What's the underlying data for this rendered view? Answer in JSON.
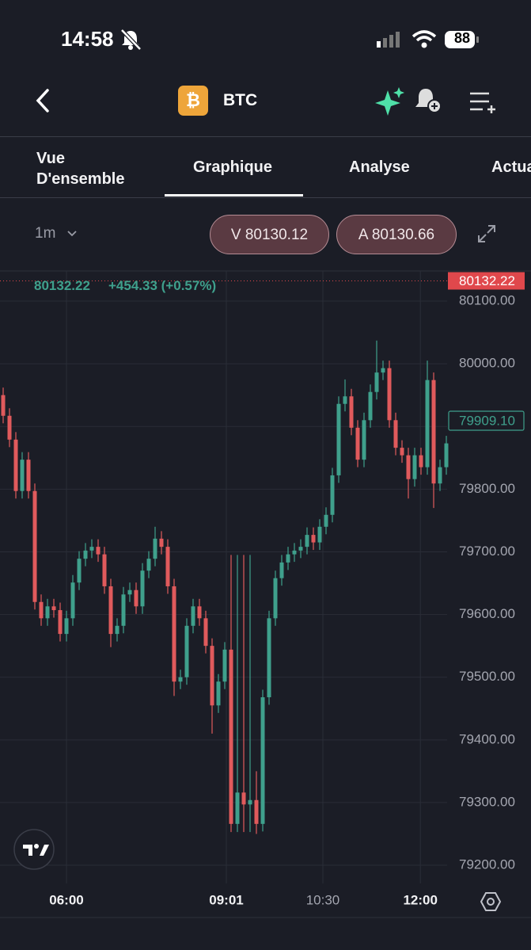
{
  "status": {
    "time": "14:58",
    "battery": "88"
  },
  "header": {
    "title": "BTC"
  },
  "tabs": [
    "Vue D'ensemble",
    "Graphique",
    "Analyse",
    "Actua"
  ],
  "toolbar": {
    "interval": "1m",
    "bid": "V 80130.12",
    "ask": "A 80130.66"
  },
  "quote": {
    "last": "80132.22",
    "change": "+454.33 (+0.57%)"
  },
  "chart_data": {
    "type": "candlestick",
    "up_color": "#3fa08c",
    "down_color": "#e05a5c",
    "grid": true,
    "xlim": [
      -0.5,
      70.125
    ],
    "xticks": [
      {
        "value": 10,
        "label": "06:00"
      },
      {
        "value": 35.25,
        "label": "09:01"
      },
      {
        "value": 50.5,
        "label": "10:30"
      },
      {
        "value": 65.9,
        "label": "12:00"
      }
    ],
    "ylim": [
      79171,
      80148
    ],
    "yticks": [
      {
        "value": 79200,
        "label": "79200.00"
      },
      {
        "value": 79300,
        "label": "79300.00"
      },
      {
        "value": 79400,
        "label": "79400.00"
      },
      {
        "value": 79500,
        "label": "79500.00"
      },
      {
        "value": 79600,
        "label": "79600.00"
      },
      {
        "value": 79700,
        "label": "79700.00"
      },
      {
        "value": 79800,
        "label": "79800.00"
      },
      {
        "value": 79900,
        "label": "79900.00"
      },
      {
        "value": 80000,
        "label": "80000.00"
      },
      {
        "value": 80100,
        "label": "80100.00"
      }
    ],
    "price_lines": [
      {
        "value": 80132.22,
        "color": "#e0484c",
        "style": "dotted"
      },
      {
        "value": 79909.1,
        "label": "79909.10",
        "color": "#3fa08c",
        "style": "outline"
      }
    ],
    "open": [
      79950,
      79917,
      79879,
      79797,
      79847,
      79797,
      79620,
      79594,
      79613,
      79607,
      79569,
      79594,
      79651,
      79689,
      79702,
      79708,
      79696,
      79645,
      79569,
      79582,
      79632,
      79639,
      79613,
      79670,
      79689,
      79721,
      79708,
      79645,
      79493,
      79500,
      79582,
      79613,
      79594,
      79550,
      79455,
      79493,
      79544,
      79266,
      79316,
      79297,
      79304,
      79266,
      79468,
      79594,
      79658,
      79683,
      79696,
      79702,
      79708,
      79727,
      79715,
      79740,
      79759,
      79822,
      79936,
      79948,
      79898,
      79847,
      79910,
      79955,
      79986,
      79993,
      79910,
      79866,
      79854,
      79816,
      79854,
      79835,
      79974,
      79809,
      79835
    ],
    "high": [
      79962,
      79929,
      79891,
      79859,
      79859,
      79809,
      79632,
      79625,
      79625,
      79619,
      79606,
      79663,
      79701,
      79714,
      79720,
      79720,
      79708,
      79657,
      79594,
      79644,
      79651,
      79651,
      79682,
      79701,
      79740,
      79733,
      79720,
      79657,
      79512,
      79594,
      79625,
      79625,
      79606,
      79562,
      79505,
      79556,
      79695,
      79695,
      79695,
      79695,
      79350,
      79480,
      79606,
      79670,
      79695,
      79708,
      79714,
      79720,
      79739,
      79739,
      79752,
      79771,
      79834,
      79948,
      79975,
      79960,
      79910,
      79922,
      79967,
      80037,
      80005,
      80005,
      79922,
      79878,
      79866,
      79866,
      79866,
      80005,
      79986,
      79847,
      79885
    ],
    "low": [
      79905,
      79867,
      79785,
      79785,
      79785,
      79608,
      79582,
      79582,
      79595,
      79557,
      79557,
      79582,
      79639,
      79677,
      79690,
      79684,
      79633,
      79548,
      79557,
      79570,
      79620,
      79601,
      79601,
      79658,
      79677,
      79696,
      79633,
      79470,
      79481,
      79488,
      79570,
      79582,
      79538,
      79410,
      79443,
      79481,
      79253,
      79253,
      79253,
      79253,
      79250,
      79254,
      79456,
      79582,
      79646,
      79671,
      79684,
      79690,
      79696,
      79703,
      79703,
      79728,
      79747,
      79810,
      79924,
      79886,
      79835,
      79835,
      79898,
      79943,
      79974,
      79898,
      79854,
      79842,
      79785,
      79804,
      79823,
      79823,
      79770,
      79797,
      79823
    ],
    "close": [
      79917,
      79879,
      79797,
      79847,
      79797,
      79620,
      79594,
      79613,
      79607,
      79569,
      79594,
      79651,
      79689,
      79702,
      79708,
      79696,
      79645,
      79569,
      79582,
      79632,
      79639,
      79613,
      79670,
      79689,
      79721,
      79708,
      79645,
      79493,
      79500,
      79582,
      79613,
      79594,
      79550,
      79455,
      79493,
      79544,
      79266,
      79316,
      79297,
      79304,
      79266,
      79468,
      79594,
      79658,
      79683,
      79696,
      79702,
      79708,
      79727,
      79715,
      79740,
      79759,
      79822,
      79936,
      79948,
      79898,
      79847,
      79910,
      79955,
      79986,
      79993,
      79910,
      79866,
      79854,
      79816,
      79854,
      79835,
      79974,
      79809,
      79835,
      79873
    ]
  }
}
